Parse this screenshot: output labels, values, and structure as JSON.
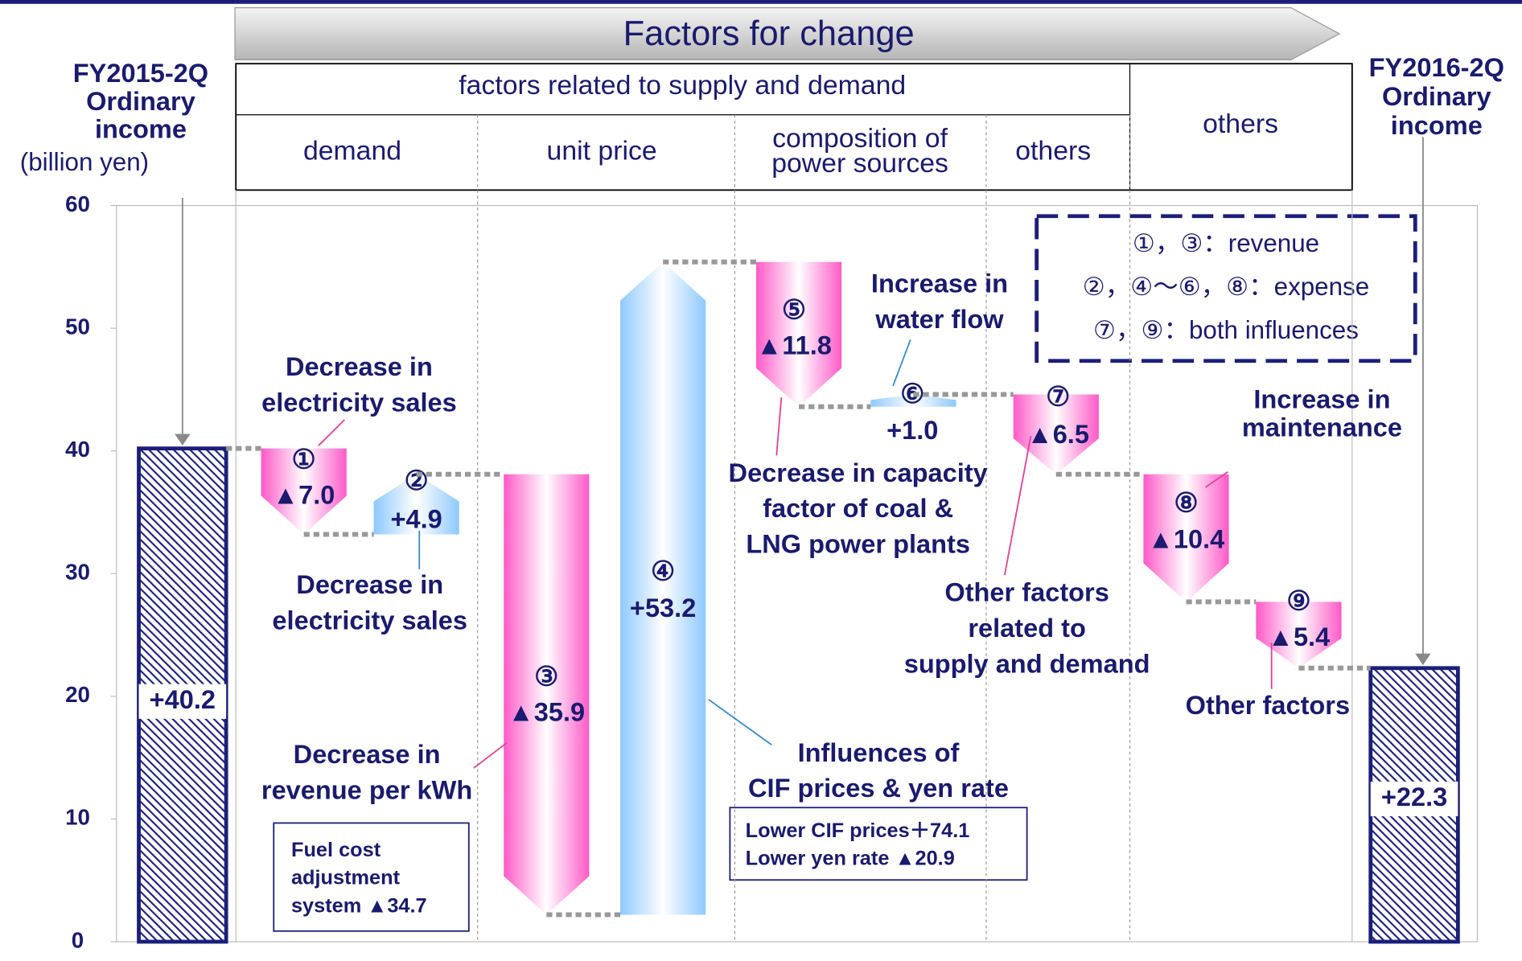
{
  "chart_data": {
    "type": "waterfall",
    "title": "Factors for change",
    "group_headers": [
      "factors related to supply and demand",
      "others"
    ],
    "sub_headers": [
      [
        "demand"
      ],
      [
        "unit price"
      ],
      [
        "composition of",
        "power sources"
      ],
      [
        "others"
      ]
    ],
    "start_label": [
      "FY2015-2Q",
      "Ordinary",
      "income"
    ],
    "end_label": [
      "FY2016-2Q",
      "Ordinary",
      "income"
    ],
    "y_unit": "(billion yen)",
    "categories": [
      null,
      "①",
      "②",
      "③",
      "④",
      "⑤",
      "⑥",
      "⑦",
      "⑧",
      "⑨",
      null
    ],
    "values": [
      40.2,
      -7.0,
      4.9,
      -35.9,
      53.2,
      -11.8,
      1.0,
      -6.5,
      -10.4,
      -5.4,
      22.3
    ],
    "value_labels": [
      "+40.2",
      "▲7.0",
      "+4.9",
      "▲35.9",
      "+53.2",
      "▲11.8",
      "+1.0",
      "▲6.5",
      "▲10.4",
      "▲5.4",
      "+22.3"
    ],
    "kinds": [
      "total",
      "delta",
      "delta",
      "delta",
      "delta",
      "delta",
      "delta",
      "delta",
      "delta",
      "delta",
      "total"
    ],
    "colors": {
      "total": "#1b1f7a",
      "increase": "#8ec9ff",
      "decrease": "#ff5ac8"
    },
    "ylim": [
      0,
      60
    ],
    "yticks": [
      0,
      10,
      20,
      30,
      40,
      50,
      60
    ],
    "legend_box": [
      "①，③：revenue",
      "②，④〜⑥，⑧：expense",
      "⑦，⑨：both influences"
    ],
    "annotations": [
      {
        "lines": [
          "Decrease in",
          "electricity sales"
        ]
      },
      {
        "lines": [
          "Decrease in",
          "electricity sales"
        ]
      },
      {
        "lines": [
          "Decrease in",
          "revenue per kWh"
        ]
      },
      {
        "lines": [
          "Influences of",
          "CIF prices & yen rate"
        ]
      },
      {
        "lines": [
          "Increase in",
          "water flow"
        ]
      },
      {
        "lines": [
          "Decrease in capacity",
          "factor of coal &",
          "LNG power plants"
        ]
      },
      {
        "lines": [
          "Other factors",
          "related to",
          "supply and demand"
        ]
      },
      {
        "lines": [
          "Increase in",
          "maintenance"
        ]
      },
      {
        "lines": [
          "Other factors"
        ]
      }
    ],
    "notes": [
      {
        "lines": [
          "Fuel cost",
          "adjustment",
          "system ▲34.7"
        ]
      },
      {
        "lines": [
          "Lower CIF prices＋74.1",
          "Lower yen rate ▲20.9"
        ]
      }
    ]
  }
}
